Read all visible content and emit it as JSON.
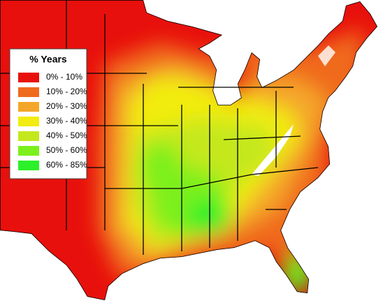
{
  "legend": {
    "title": "% Years",
    "entries": [
      {
        "label": "0% - 10%",
        "color": "#e8100c"
      },
      {
        "label": "10% - 20%",
        "color": "#f06a1e"
      },
      {
        "label": "20% - 30%",
        "color": "#f4a62a"
      },
      {
        "label": "30% - 40%",
        "color": "#f2ec10"
      },
      {
        "label": "40% - 50%",
        "color": "#c4e81e"
      },
      {
        "label": "50% - 60%",
        "color": "#7cf01c"
      },
      {
        "label": "60% - 85%",
        "color": "#2cf02a"
      }
    ]
  }
}
